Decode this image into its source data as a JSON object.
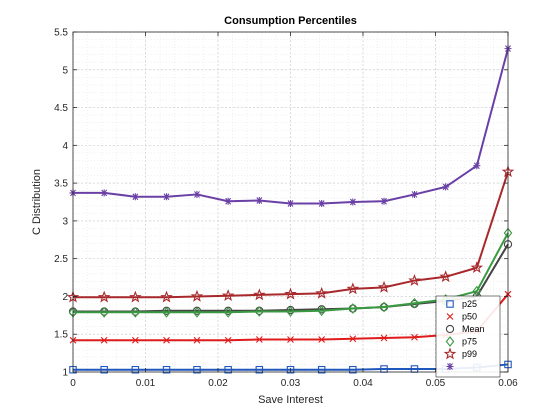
{
  "chart_data": {
    "type": "line",
    "title": "Consumption Percentiles",
    "xlabel": "Save Interest",
    "ylabel": "C Distribution",
    "xlim": [
      0,
      0.06
    ],
    "ylim": [
      1,
      5.5
    ],
    "xticks": [
      0,
      0.01,
      0.02,
      0.03,
      0.04,
      0.05,
      0.06
    ],
    "xtick_labels": [
      "0",
      "0.01",
      "0.02",
      "0.03",
      "0.04",
      "0.05",
      "0.06"
    ],
    "yticks": [
      1,
      1.5,
      2,
      2.5,
      3,
      3.5,
      4,
      4.5,
      5,
      5.5
    ],
    "ytick_labels": [
      "1",
      "1.5",
      "2",
      "2.5",
      "3",
      "3.5",
      "4",
      "4.5",
      "5",
      "5.5"
    ],
    "grid": "on (major and minor, dotted)",
    "legend_position": "bottom-right",
    "x": [
      0,
      0.0043,
      0.0086,
      0.0129,
      0.0171,
      0.0214,
      0.0257,
      0.03,
      0.0343,
      0.0386,
      0.0429,
      0.0471,
      0.0514,
      0.0557,
      0.06
    ],
    "series": [
      {
        "name": "p25",
        "color": "#1f57bd",
        "marker": "square",
        "values": [
          1.03,
          1.03,
          1.03,
          1.03,
          1.03,
          1.03,
          1.03,
          1.03,
          1.03,
          1.03,
          1.04,
          1.04,
          1.04,
          1.06,
          1.1
        ]
      },
      {
        "name": "p50",
        "color": "#e01b1b",
        "marker": "x",
        "values": [
          1.42,
          1.42,
          1.42,
          1.42,
          1.42,
          1.42,
          1.43,
          1.43,
          1.43,
          1.44,
          1.45,
          1.46,
          1.49,
          1.54,
          2.03
        ]
      },
      {
        "name": "Mean",
        "color": "#444444",
        "marker": "circle",
        "values": [
          1.8,
          1.8,
          1.8,
          1.81,
          1.81,
          1.81,
          1.81,
          1.82,
          1.83,
          1.84,
          1.86,
          1.9,
          1.94,
          2.0,
          2.69
        ]
      },
      {
        "name": "p75",
        "color": "#3a9a42",
        "marker": "diamond",
        "values": [
          1.79,
          1.79,
          1.79,
          1.79,
          1.79,
          1.79,
          1.8,
          1.8,
          1.81,
          1.84,
          1.86,
          1.91,
          1.96,
          2.07,
          2.84
        ]
      },
      {
        "name": "p99",
        "color": "#a8282b",
        "marker": "pentagram",
        "values": [
          1.99,
          1.99,
          1.99,
          1.99,
          2.0,
          2.01,
          2.02,
          2.03,
          2.04,
          2.1,
          2.12,
          2.21,
          2.26,
          2.38,
          3.65
        ]
      },
      {
        "name": "",
        "color": "#6a40a6",
        "marker": "asterisk",
        "values": [
          3.37,
          3.37,
          3.32,
          3.32,
          3.35,
          3.26,
          3.27,
          3.23,
          3.23,
          3.25,
          3.26,
          3.35,
          3.45,
          3.73,
          5.28
        ]
      }
    ]
  }
}
